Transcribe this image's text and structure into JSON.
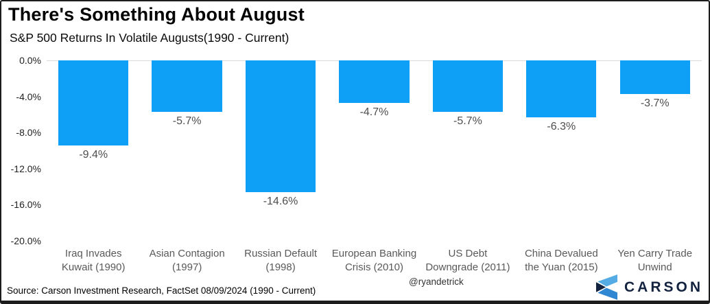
{
  "title": "There's Something About August",
  "subtitle": "S&P 500 Returns In Volatile Augusts(1990 - Current)",
  "chart_data": {
    "type": "bar",
    "categories": [
      "Iraq Invades\nKuwait (1990)",
      "Asian Contagion\n(1997)",
      "Russian Default\n(1998)",
      "European Banking\nCrisis (2010)",
      "US Debt\nDowngrade (2011)",
      "China Devalued\nthe Yuan (2015)",
      "Yen Carry Trade\nUnwind"
    ],
    "values": [
      -9.4,
      -5.7,
      -14.6,
      -4.7,
      -5.7,
      -6.3,
      -3.7
    ],
    "value_labels": [
      "-9.4%",
      "-5.7%",
      "-14.6%",
      "-4.7%",
      "-5.7%",
      "-6.3%",
      "-3.7%"
    ],
    "y_ticks": [
      "0.0%",
      "-4.0%",
      "-8.0%",
      "-12.0%",
      "-16.0%",
      "-20.0%"
    ],
    "ylim": [
      -20,
      0
    ],
    "xlabel": "",
    "ylabel": "",
    "grid": false,
    "legend": false,
    "title": "There's Something About August",
    "subtitle": "S&P 500 Returns In Volatile Augusts(1990 - Current)"
  },
  "colors": {
    "bar": "#0da0f6",
    "zero_line": "#d9d9d9",
    "value_label": "#4d4d4d",
    "category_label": "#595959",
    "tick_label": "#222222",
    "navy": "#13233f",
    "logo_light_blue": "#55ace4",
    "logo_mid_blue": "#2f86d2",
    "logo_navy": "#13233f"
  },
  "footer": {
    "source": "Source: Carson Investment Research, FactSet 08/09/2024 (1990 - Current)",
    "handle": "@ryandetrick",
    "brand": "CARSON"
  }
}
